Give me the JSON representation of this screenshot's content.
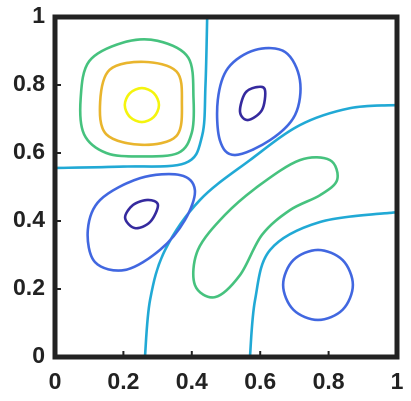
{
  "chart_data": {
    "type": "contour",
    "xlim": [
      0,
      1
    ],
    "ylim": [
      0,
      1
    ],
    "xticks": [
      0,
      0.2,
      0.4,
      0.6,
      0.8,
      1
    ],
    "yticks": [
      0,
      0.2,
      0.4,
      0.6,
      0.8,
      1
    ],
    "series": [
      {
        "color": "#21a9d5",
        "closed": false,
        "x": [
          0,
          0.2,
          0.38,
          0.43,
          0.44,
          0.445
        ],
        "y": [
          0.556,
          0.56,
          0.57,
          0.65,
          0.8,
          1
        ]
      },
      {
        "color": "#21a9d5",
        "closed": false,
        "x": [
          0.263,
          0.278,
          0.322,
          0.424,
          0.57,
          0.716,
          0.863,
          1
        ],
        "y": [
          0,
          0.168,
          0.315,
          0.462,
          0.579,
          0.682,
          0.732,
          0.741
        ]
      },
      {
        "color": "#21a9d5",
        "closed": false,
        "x": [
          0.57,
          0.585,
          0.629,
          0.775,
          1
        ],
        "y": [
          0,
          0.168,
          0.315,
          0.397,
          0.426
        ]
      },
      {
        "color": "#46c27e",
        "closed": true,
        "x": [
          0.405,
          0.39,
          0.3,
          0.2,
          0.1,
          0.075,
          0.085,
          0.15,
          0.25,
          0.36,
          0.4
        ],
        "y": [
          0.76,
          0.88,
          0.93,
          0.925,
          0.87,
          0.76,
          0.655,
          0.6,
          0.59,
          0.6,
          0.66
        ]
      },
      {
        "color": "#e9b52d",
        "closed": true,
        "x": [
          0.371,
          0.355,
          0.26,
          0.16,
          0.132,
          0.15,
          0.255,
          0.355
        ],
        "y": [
          0.75,
          0.84,
          0.868,
          0.845,
          0.75,
          0.655,
          0.624,
          0.65
        ]
      },
      {
        "color": "#f4f40e",
        "closed": true,
        "x": [
          0.304,
          0.289,
          0.254,
          0.219,
          0.204,
          0.219,
          0.254,
          0.289
        ],
        "y": [
          0.741,
          0.776,
          0.791,
          0.776,
          0.741,
          0.706,
          0.691,
          0.706
        ]
      },
      {
        "color": "#4167e0",
        "closed": true,
        "x": [
          0.673,
          0.716,
          0.702,
          0.629,
          0.526,
          0.482,
          0.476,
          0.506,
          0.585
        ],
        "y": [
          0.897,
          0.815,
          0.712,
          0.638,
          0.594,
          0.638,
          0.756,
          0.85,
          0.903
        ]
      },
      {
        "color": "#352a9e",
        "closed": true,
        "x": [
          0.614,
          0.605,
          0.564,
          0.541,
          0.556,
          0.591
        ],
        "y": [
          0.785,
          0.726,
          0.697,
          0.721,
          0.776,
          0.794
        ]
      },
      {
        "color": "#4167e0",
        "closed": true,
        "x": [
          0.409,
          0.38,
          0.307,
          0.205,
          0.117,
          0.096,
          0.132,
          0.249,
          0.366
        ],
        "y": [
          0.491,
          0.403,
          0.315,
          0.256,
          0.279,
          0.374,
          0.462,
          0.526,
          0.535
        ]
      },
      {
        "color": "#352a9e",
        "closed": true,
        "x": [
          0.301,
          0.278,
          0.234,
          0.205,
          0.228,
          0.272
        ],
        "y": [
          0.447,
          0.397,
          0.379,
          0.409,
          0.447,
          0.462
        ]
      },
      {
        "color": "#4167e0",
        "closed": true,
        "x": [
          0.871,
          0.841,
          0.769,
          0.697,
          0.667,
          0.697,
          0.769,
          0.841
        ],
        "y": [
          0.212,
          0.285,
          0.315,
          0.285,
          0.212,
          0.139,
          0.109,
          0.139
        ]
      },
      {
        "color": "#46c27e",
        "closed": true,
        "x": [
          0.804,
          0.825,
          0.775,
          0.687,
          0.605,
          0.541,
          0.468,
          0.409,
          0.418,
          0.497,
          0.599,
          0.716
        ],
        "y": [
          0.579,
          0.521,
          0.476,
          0.432,
          0.359,
          0.241,
          0.176,
          0.212,
          0.315,
          0.418,
          0.506,
          0.579
        ]
      }
    ]
  }
}
